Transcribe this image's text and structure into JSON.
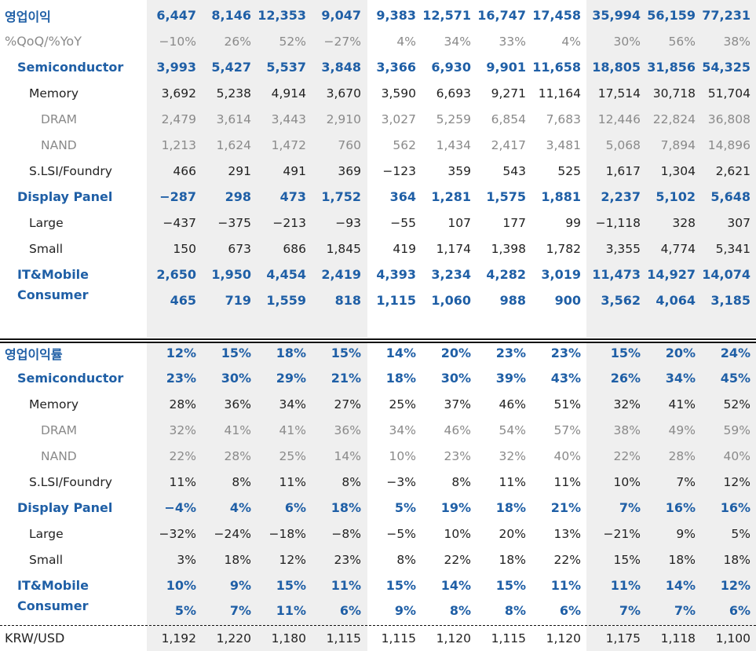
{
  "periods_count": 11,
  "op_profit_section": {
    "rows": [
      {
        "label": "영업이익",
        "style": "blue",
        "indent": 0,
        "values": [
          "6,447",
          "8,146",
          "12,353",
          "9,047",
          "9,383",
          "12,571",
          "16,747",
          "17,458",
          "35,994",
          "56,159",
          "77,231"
        ]
      },
      {
        "label": "%QoQ/%YoY",
        "style": "gray",
        "indent": 0,
        "values": [
          "−10%",
          "26%",
          "52%",
          "−27%",
          "4%",
          "34%",
          "33%",
          "4%",
          "30%",
          "56%",
          "38%"
        ]
      },
      {
        "label": "Semiconductor",
        "style": "blue",
        "indent": 1,
        "values": [
          "3,993",
          "5,427",
          "5,537",
          "3,848",
          "3,366",
          "6,930",
          "9,901",
          "11,658",
          "18,805",
          "31,856",
          "54,325"
        ]
      },
      {
        "label": "Memory",
        "style": "black",
        "indent": 2,
        "values": [
          "3,692",
          "5,238",
          "4,914",
          "3,670",
          "3,590",
          "6,693",
          "9,271",
          "11,164",
          "17,514",
          "30,718",
          "51,704"
        ]
      },
      {
        "label": "DRAM",
        "style": "gray",
        "indent": 3,
        "values": [
          "2,479",
          "3,614",
          "3,443",
          "2,910",
          "3,027",
          "5,259",
          "6,854",
          "7,683",
          "12,446",
          "22,824",
          "36,808"
        ]
      },
      {
        "label": "NAND",
        "style": "gray",
        "indent": 3,
        "values": [
          "1,213",
          "1,624",
          "1,472",
          "760",
          "562",
          "1,434",
          "2,417",
          "3,481",
          "5,068",
          "7,894",
          "14,896"
        ]
      },
      {
        "label": "S.LSI/Foundry",
        "style": "black",
        "indent": 2,
        "values": [
          "466",
          "291",
          "491",
          "369",
          "−123",
          "359",
          "543",
          "525",
          "1,617",
          "1,304",
          "2,621"
        ]
      },
      {
        "label": "Display Panel",
        "style": "blue",
        "indent": 1,
        "values": [
          "−287",
          "298",
          "473",
          "1,752",
          "364",
          "1,281",
          "1,575",
          "1,881",
          "2,237",
          "5,102",
          "5,648"
        ]
      },
      {
        "label": "Large",
        "style": "black",
        "indent": 2,
        "values": [
          "−437",
          "−375",
          "−213",
          "−93",
          "−55",
          "107",
          "177",
          "99",
          "−1,118",
          "328",
          "307"
        ]
      },
      {
        "label": "Small",
        "style": "black",
        "indent": 2,
        "values": [
          "150",
          "673",
          "686",
          "1,845",
          "419",
          "1,174",
          "1,398",
          "1,782",
          "3,355",
          "4,774",
          "5,341"
        ]
      },
      {
        "label": "IT&Mobile",
        "style": "blue",
        "indent": 1,
        "values": [
          "2,650",
          "1,950",
          "4,454",
          "2,419",
          "4,393",
          "3,234",
          "4,282",
          "3,019",
          "11,473",
          "14,927",
          "14,074"
        ]
      },
      {
        "label": "Consumer",
        "style": "blue",
        "indent": 1,
        "values": [
          "465",
          "719",
          "1,559",
          "818",
          "1,115",
          "1,060",
          "988",
          "900",
          "3,562",
          "4,064",
          "3,185"
        ]
      }
    ]
  },
  "op_margin_section": {
    "rows": [
      {
        "label": "영업이익률",
        "style": "blue",
        "indent": 0,
        "values": [
          "12%",
          "15%",
          "18%",
          "15%",
          "14%",
          "20%",
          "23%",
          "23%",
          "15%",
          "20%",
          "24%"
        ]
      },
      {
        "label": "Semiconductor",
        "style": "blue",
        "indent": 1,
        "values": [
          "23%",
          "30%",
          "29%",
          "21%",
          "18%",
          "30%",
          "39%",
          "43%",
          "26%",
          "34%",
          "45%"
        ]
      },
      {
        "label": "Memory",
        "style": "black",
        "indent": 2,
        "values": [
          "28%",
          "36%",
          "34%",
          "27%",
          "25%",
          "37%",
          "46%",
          "51%",
          "32%",
          "41%",
          "52%"
        ]
      },
      {
        "label": "DRAM",
        "style": "gray",
        "indent": 3,
        "values": [
          "32%",
          "41%",
          "41%",
          "36%",
          "34%",
          "46%",
          "54%",
          "57%",
          "38%",
          "49%",
          "59%"
        ]
      },
      {
        "label": "NAND",
        "style": "gray",
        "indent": 3,
        "values": [
          "22%",
          "28%",
          "25%",
          "14%",
          "10%",
          "23%",
          "32%",
          "40%",
          "22%",
          "28%",
          "40%"
        ]
      },
      {
        "label": "S.LSI/Foundry",
        "style": "black",
        "indent": 2,
        "values": [
          "11%",
          "8%",
          "11%",
          "8%",
          "−3%",
          "8%",
          "11%",
          "11%",
          "10%",
          "7%",
          "12%"
        ]
      },
      {
        "label": "Display Panel",
        "style": "blue",
        "indent": 1,
        "values": [
          "−4%",
          "4%",
          "6%",
          "18%",
          "5%",
          "19%",
          "18%",
          "21%",
          "7%",
          "16%",
          "16%"
        ]
      },
      {
        "label": "Large",
        "style": "black",
        "indent": 2,
        "values": [
          "−32%",
          "−24%",
          "−18%",
          "−8%",
          "−5%",
          "10%",
          "20%",
          "13%",
          "−21%",
          "9%",
          "5%"
        ]
      },
      {
        "label": "Small",
        "style": "black",
        "indent": 2,
        "values": [
          "3%",
          "18%",
          "12%",
          "23%",
          "8%",
          "22%",
          "18%",
          "22%",
          "15%",
          "18%",
          "18%"
        ]
      },
      {
        "label": "IT&Mobile",
        "style": "blue",
        "indent": 1,
        "values": [
          "10%",
          "9%",
          "15%",
          "11%",
          "15%",
          "14%",
          "15%",
          "11%",
          "11%",
          "14%",
          "12%"
        ]
      },
      {
        "label": "Consumer",
        "style": "blue",
        "indent": 1,
        "values": [
          "5%",
          "7%",
          "11%",
          "6%",
          "9%",
          "8%",
          "8%",
          "6%",
          "7%",
          "7%",
          "6%"
        ]
      }
    ]
  },
  "fx_row": {
    "label": "KRW/USD",
    "style": "black",
    "indent": 0,
    "values": [
      "1,192",
      "1,220",
      "1,180",
      "1,115",
      "1,115",
      "1,120",
      "1,115",
      "1,120",
      "1,175",
      "1,118",
      "1,100"
    ]
  }
}
